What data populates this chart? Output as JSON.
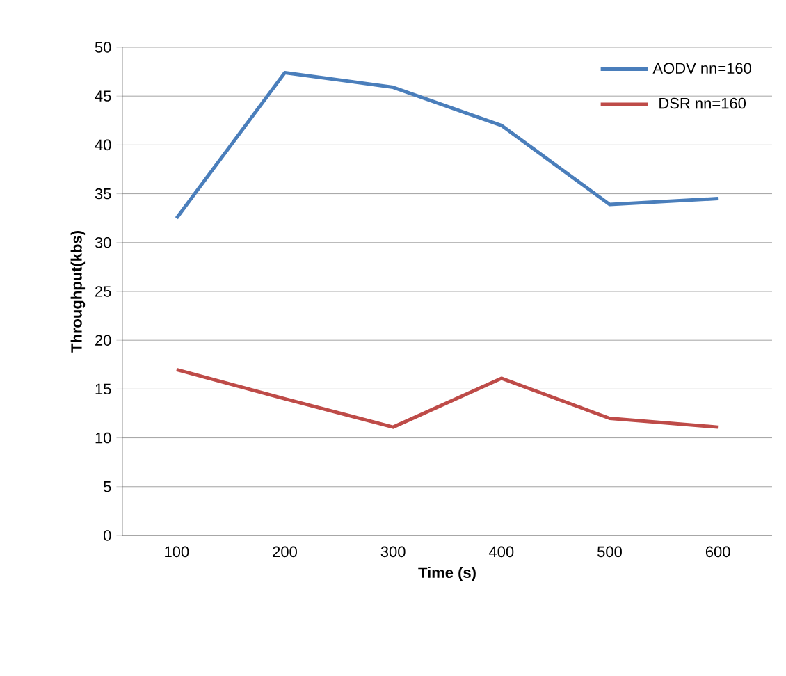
{
  "chart_data": {
    "type": "line",
    "xlabel": "Time (s)",
    "ylabel": "Throughput(kbs)",
    "categories": [
      "100",
      "200",
      "300",
      "400",
      "500",
      "600"
    ],
    "series": [
      {
        "name": "AODV nn=160",
        "color": "#4a7ebb",
        "values": [
          32.5,
          47.4,
          45.9,
          42,
          33.9,
          34.5
        ]
      },
      {
        "name": "DSR nn=160",
        "color": "#be4b48",
        "values": [
          17,
          14,
          11.1,
          16.1,
          12,
          11.1
        ]
      }
    ],
    "ylim": [
      0,
      50
    ],
    "yticks": [
      0,
      5,
      10,
      15,
      20,
      25,
      30,
      35,
      40,
      45,
      50
    ],
    "grid": "y",
    "legend": "top right",
    "marker": "none",
    "line_style": "solid"
  }
}
